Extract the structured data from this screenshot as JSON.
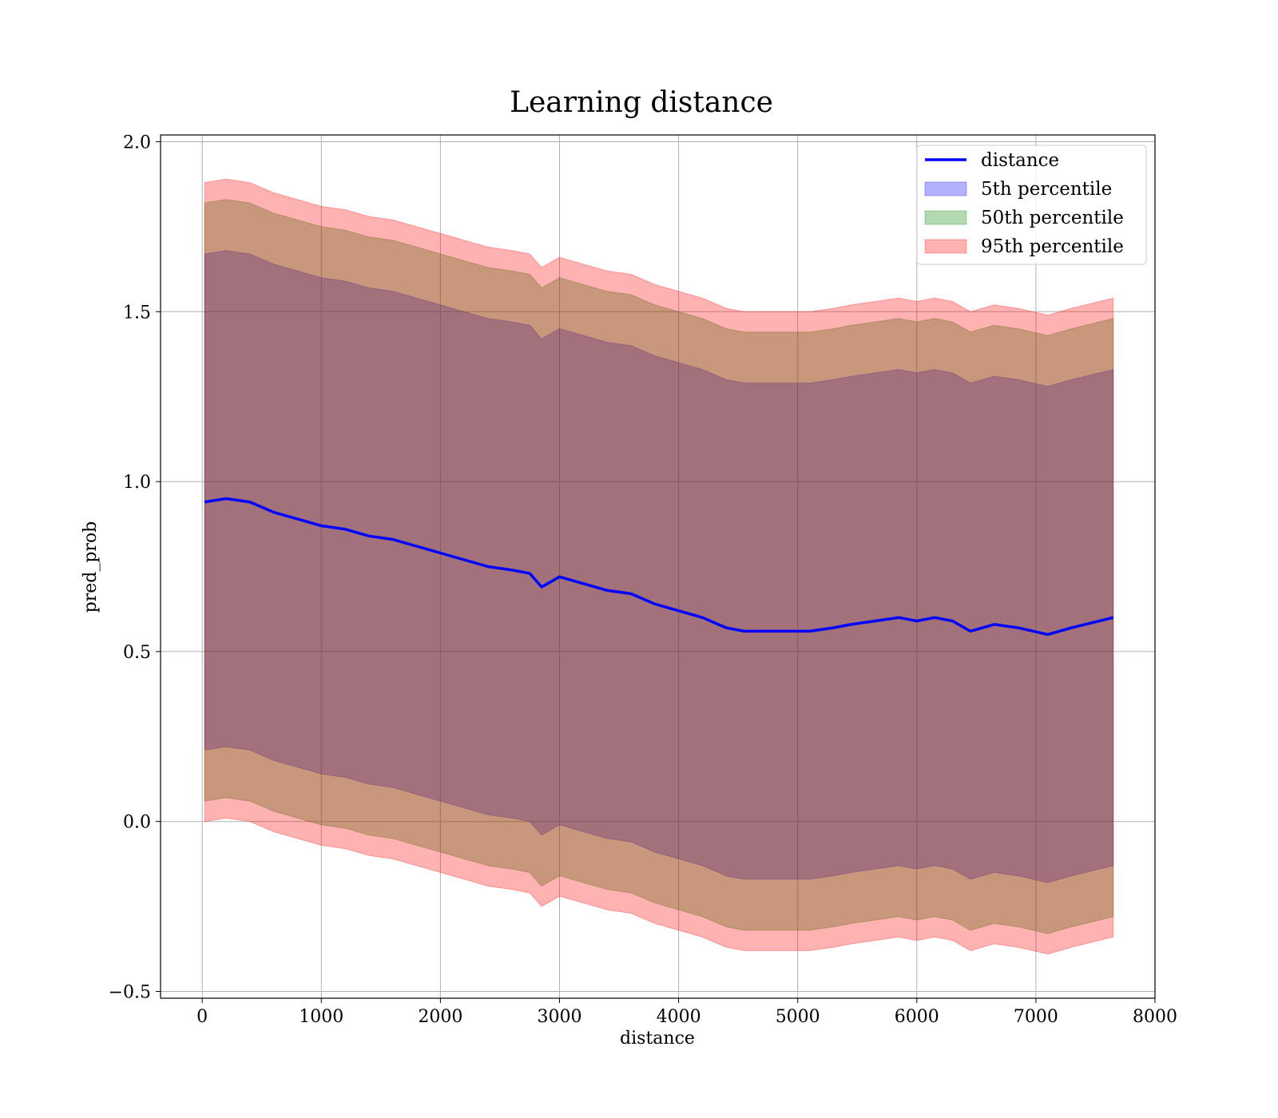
{
  "chart_data": {
    "type": "area",
    "title": "Learning distance",
    "xlabel": "distance",
    "ylabel": "pred_prob",
    "xlim": [
      -350,
      8000
    ],
    "ylim": [
      -0.52,
      2.02
    ],
    "x_ticks": [
      0,
      1000,
      2000,
      3000,
      4000,
      5000,
      6000,
      7000,
      8000
    ],
    "y_ticks": [
      -0.5,
      0.0,
      0.5,
      1.0,
      1.5,
      2.0
    ],
    "x_tick_labels": [
      "0",
      "1000",
      "2000",
      "3000",
      "4000",
      "5000",
      "6000",
      "7000",
      "8000"
    ],
    "y_tick_labels": [
      "−0.5",
      "0.0",
      "0.5",
      "1.0",
      "1.5",
      "2.0"
    ],
    "grid": true,
    "legend_position": "top-right",
    "legend": [
      "distance",
      "5th percentile",
      "50th percentile",
      "95th percentile"
    ],
    "colors": {
      "line": "#0000ff",
      "band_5th": "#0000ff",
      "band_50th": "#008000",
      "band_95th": "#ff0000"
    },
    "x": [
      20,
      200,
      400,
      600,
      800,
      1000,
      1200,
      1400,
      1600,
      1800,
      2000,
      2200,
      2400,
      2600,
      2750,
      2850,
      3000,
      3200,
      3400,
      3600,
      3800,
      4000,
      4200,
      4400,
      4550,
      4700,
      4950,
      5100,
      5300,
      5450,
      5650,
      5850,
      6000,
      6150,
      6300,
      6450,
      6650,
      6850,
      7100,
      7300,
      7650
    ],
    "series": [
      {
        "name": "distance",
        "values": [
          0.94,
          0.95,
          0.94,
          0.91,
          0.89,
          0.87,
          0.86,
          0.84,
          0.83,
          0.81,
          0.79,
          0.77,
          0.75,
          0.74,
          0.73,
          0.69,
          0.72,
          0.7,
          0.68,
          0.67,
          0.64,
          0.62,
          0.6,
          0.57,
          0.56,
          0.56,
          0.56,
          0.56,
          0.57,
          0.58,
          0.59,
          0.6,
          0.59,
          0.6,
          0.59,
          0.56,
          0.58,
          0.57,
          0.55,
          0.57,
          0.6
        ]
      },
      {
        "name": "5th percentile",
        "lower": [
          0.21,
          0.22,
          0.21,
          0.18,
          0.16,
          0.14,
          0.13,
          0.11,
          0.1,
          0.08,
          0.06,
          0.04,
          0.02,
          0.01,
          0.0,
          -0.04,
          -0.01,
          -0.03,
          -0.05,
          -0.06,
          -0.09,
          -0.11,
          -0.13,
          -0.16,
          -0.17,
          -0.17,
          -0.17,
          -0.17,
          -0.16,
          -0.15,
          -0.14,
          -0.13,
          -0.14,
          -0.13,
          -0.14,
          -0.17,
          -0.15,
          -0.16,
          -0.18,
          -0.16,
          -0.13
        ],
        "upper": [
          1.67,
          1.68,
          1.67,
          1.64,
          1.62,
          1.6,
          1.59,
          1.57,
          1.56,
          1.54,
          1.52,
          1.5,
          1.48,
          1.47,
          1.46,
          1.42,
          1.45,
          1.43,
          1.41,
          1.4,
          1.37,
          1.35,
          1.33,
          1.3,
          1.29,
          1.29,
          1.29,
          1.29,
          1.3,
          1.31,
          1.32,
          1.33,
          1.32,
          1.33,
          1.32,
          1.29,
          1.31,
          1.3,
          1.28,
          1.3,
          1.33
        ]
      },
      {
        "name": "50th percentile",
        "lower": [
          0.06,
          0.07,
          0.06,
          0.03,
          0.01,
          -0.01,
          -0.02,
          -0.04,
          -0.05,
          -0.07,
          -0.09,
          -0.11,
          -0.13,
          -0.14,
          -0.15,
          -0.19,
          -0.16,
          -0.18,
          -0.2,
          -0.21,
          -0.24,
          -0.26,
          -0.28,
          -0.31,
          -0.32,
          -0.32,
          -0.32,
          -0.32,
          -0.31,
          -0.3,
          -0.29,
          -0.28,
          -0.29,
          -0.28,
          -0.29,
          -0.32,
          -0.3,
          -0.31,
          -0.33,
          -0.31,
          -0.28
        ],
        "upper": [
          1.82,
          1.83,
          1.82,
          1.79,
          1.77,
          1.75,
          1.74,
          1.72,
          1.71,
          1.69,
          1.67,
          1.65,
          1.63,
          1.62,
          1.61,
          1.57,
          1.6,
          1.58,
          1.56,
          1.55,
          1.52,
          1.5,
          1.48,
          1.45,
          1.44,
          1.44,
          1.44,
          1.44,
          1.45,
          1.46,
          1.47,
          1.48,
          1.47,
          1.48,
          1.47,
          1.44,
          1.46,
          1.45,
          1.43,
          1.45,
          1.48
        ]
      },
      {
        "name": "95th percentile",
        "lower": [
          0.0,
          0.01,
          0.0,
          -0.03,
          -0.05,
          -0.07,
          -0.08,
          -0.1,
          -0.11,
          -0.13,
          -0.15,
          -0.17,
          -0.19,
          -0.2,
          -0.21,
          -0.25,
          -0.22,
          -0.24,
          -0.26,
          -0.27,
          -0.3,
          -0.32,
          -0.34,
          -0.37,
          -0.38,
          -0.38,
          -0.38,
          -0.38,
          -0.37,
          -0.36,
          -0.35,
          -0.34,
          -0.35,
          -0.34,
          -0.35,
          -0.38,
          -0.36,
          -0.37,
          -0.39,
          -0.37,
          -0.34
        ],
        "upper": [
          1.88,
          1.89,
          1.88,
          1.85,
          1.83,
          1.81,
          1.8,
          1.78,
          1.77,
          1.75,
          1.73,
          1.71,
          1.69,
          1.68,
          1.67,
          1.63,
          1.66,
          1.64,
          1.62,
          1.61,
          1.58,
          1.56,
          1.54,
          1.51,
          1.5,
          1.5,
          1.5,
          1.5,
          1.51,
          1.52,
          1.53,
          1.54,
          1.53,
          1.54,
          1.53,
          1.5,
          1.52,
          1.51,
          1.49,
          1.51,
          1.54
        ]
      }
    ]
  }
}
